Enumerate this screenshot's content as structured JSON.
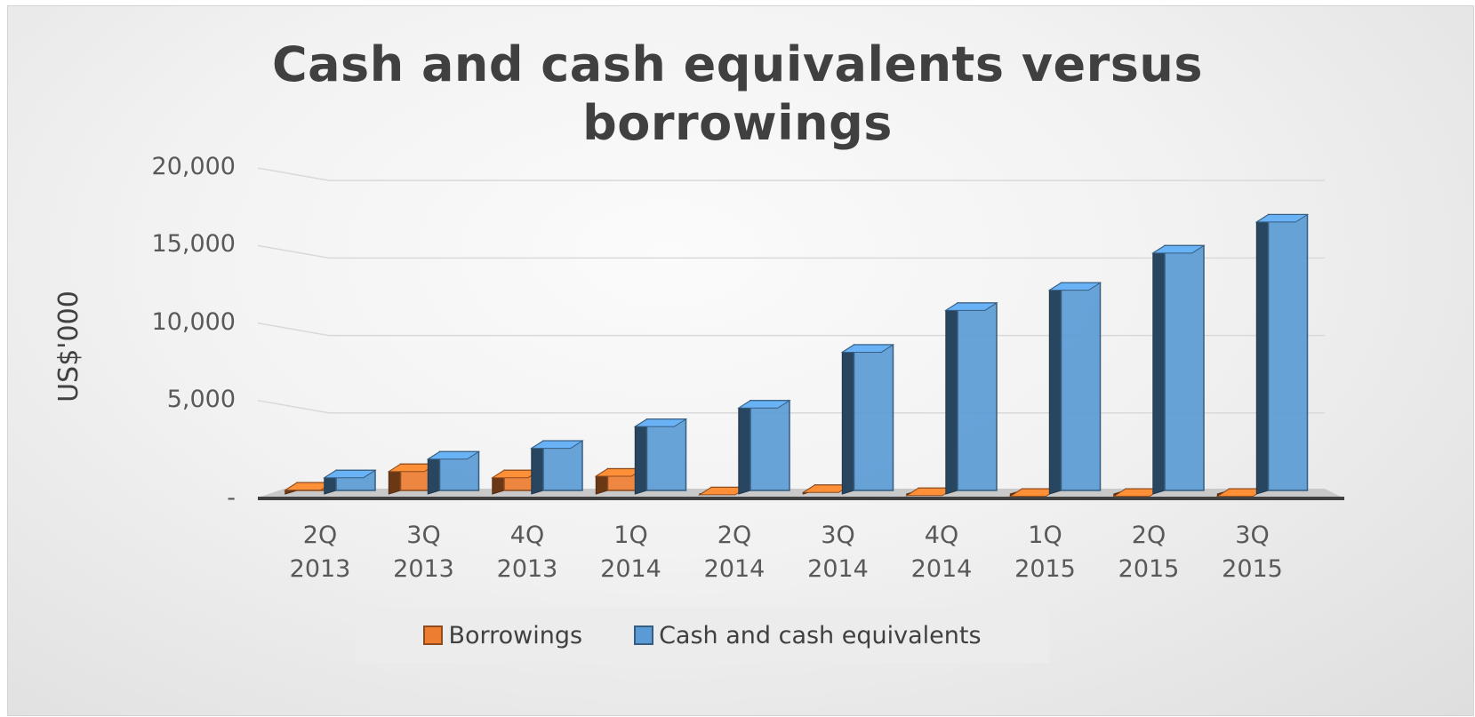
{
  "chart_data": {
    "type": "bar",
    "title_lines": [
      "Cash and cash equivalents versus",
      "borrowings"
    ],
    "xlabel": "",
    "ylabel": "US$'000",
    "ylim": [
      0,
      20000
    ],
    "yticks": [
      0,
      5000,
      10000,
      15000,
      20000
    ],
    "ytick_labels": [
      "-",
      "5,000",
      "10,000",
      "15,000",
      "20,000"
    ],
    "categories": [
      [
        "2Q",
        "2013"
      ],
      [
        "3Q",
        "2013"
      ],
      [
        "4Q",
        "2013"
      ],
      [
        "1Q",
        "2014"
      ],
      [
        "2Q",
        "2014"
      ],
      [
        "3Q",
        "2014"
      ],
      [
        "4Q",
        "2014"
      ],
      [
        "1Q",
        "2015"
      ],
      [
        "2Q",
        "2015"
      ],
      [
        "3Q",
        "2015"
      ]
    ],
    "series": [
      {
        "name": "Borrowings",
        "color": "#ed7d31",
        "values": [
          500,
          1700,
          1300,
          1400,
          200,
          350,
          150,
          100,
          100,
          100
        ]
      },
      {
        "name": "Cash and cash equivalents",
        "color": "#5b9bd5",
        "values": [
          1300,
          2500,
          3200,
          4600,
          5800,
          9400,
          12100,
          13400,
          15800,
          17800
        ]
      }
    ],
    "grid": true,
    "legend_position": "bottom"
  }
}
